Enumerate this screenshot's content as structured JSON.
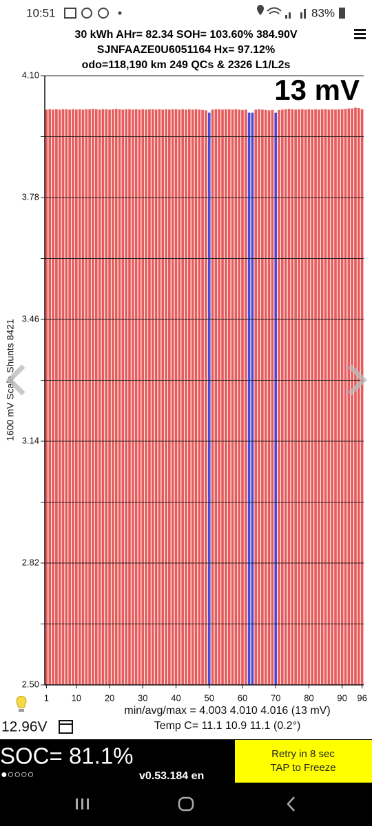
{
  "status_bar": {
    "time": "10:51",
    "battery": "83%"
  },
  "header": {
    "line1": "30 kWh  AHr= 82.34  SOH= 103.60%   384.90V",
    "line2": "SJNFAAZE0U6051164   Hx= 97.12%",
    "line3": "odo=118,190 km 249 QCs & 2326 L1/L2s"
  },
  "chart_data": {
    "type": "bar",
    "annotation": "13 mV",
    "y_label": "1600 mV Scale  Shunts 8421",
    "x": [
      1,
      2,
      3,
      4,
      5,
      6,
      7,
      8,
      9,
      10,
      11,
      12,
      13,
      14,
      15,
      16,
      17,
      18,
      19,
      20,
      21,
      22,
      23,
      24,
      25,
      26,
      27,
      28,
      29,
      30,
      31,
      32,
      33,
      34,
      35,
      36,
      37,
      38,
      39,
      40,
      41,
      42,
      43,
      44,
      45,
      46,
      47,
      48,
      49,
      50,
      51,
      52,
      53,
      54,
      55,
      56,
      57,
      58,
      59,
      60,
      61,
      62,
      63,
      64,
      65,
      66,
      67,
      68,
      69,
      70,
      71,
      72,
      73,
      74,
      75,
      76,
      77,
      78,
      79,
      80,
      81,
      82,
      83,
      84,
      85,
      86,
      87,
      88,
      89,
      90,
      91,
      92,
      93,
      94,
      95,
      96
    ],
    "values": [
      4.011,
      4.012,
      4.011,
      4.012,
      4.011,
      4.012,
      4.012,
      4.011,
      4.012,
      4.011,
      4.012,
      4.011,
      4.012,
      4.012,
      4.013,
      4.012,
      4.011,
      4.012,
      4.012,
      4.011,
      4.012,
      4.013,
      4.012,
      4.011,
      4.012,
      4.012,
      4.011,
      4.012,
      4.011,
      4.012,
      4.011,
      4.012,
      4.012,
      4.011,
      4.012,
      4.011,
      4.012,
      4.011,
      4.012,
      4.012,
      4.011,
      4.012,
      4.011,
      4.012,
      4.011,
      4.012,
      4.011,
      4.01,
      4.009,
      4.003,
      4.011,
      4.012,
      4.012,
      4.011,
      4.012,
      4.012,
      4.011,
      4.012,
      4.011,
      4.01,
      4.011,
      4.003,
      4.003,
      4.011,
      4.012,
      4.011,
      4.01,
      4.009,
      4.01,
      4.003,
      4.01,
      4.011,
      4.012,
      4.013,
      4.012,
      4.011,
      4.012,
      4.012,
      4.011,
      4.012,
      4.011,
      4.012,
      4.011,
      4.012,
      4.012,
      4.011,
      4.012,
      4.011,
      4.012,
      4.012,
      4.013,
      4.014,
      4.014,
      4.016,
      4.015,
      4.012
    ],
    "colors": [
      "#e65c5c",
      "#e65c5c",
      "#e65c5c",
      "#e65c5c",
      "#e65c5c",
      "#e65c5c",
      "#e65c5c",
      "#e65c5c",
      "#e65c5c",
      "#e65c5c",
      "#e65c5c",
      "#e65c5c",
      "#e65c5c",
      "#e65c5c",
      "#e65c5c",
      "#e65c5c",
      "#e65c5c",
      "#e65c5c",
      "#e65c5c",
      "#e65c5c",
      "#e65c5c",
      "#e65c5c",
      "#e65c5c",
      "#e65c5c",
      "#e65c5c",
      "#e65c5c",
      "#e65c5c",
      "#e65c5c",
      "#e65c5c",
      "#e65c5c",
      "#e65c5c",
      "#e65c5c",
      "#e65c5c",
      "#e65c5c",
      "#e65c5c",
      "#e65c5c",
      "#e65c5c",
      "#e65c5c",
      "#e65c5c",
      "#e65c5c",
      "#e65c5c",
      "#e65c5c",
      "#e65c5c",
      "#e65c5c",
      "#e65c5c",
      "#e65c5c",
      "#e65c5c",
      "#e65c5c",
      "#e65c5c",
      "#4b4bd8",
      "#e65c5c",
      "#e65c5c",
      "#e65c5c",
      "#e65c5c",
      "#e65c5c",
      "#e65c5c",
      "#e65c5c",
      "#e65c5c",
      "#e65c5c",
      "#e65c5c",
      "#e65c5c",
      "#4b4bd8",
      "#4b4bd8",
      "#e65c5c",
      "#e65c5c",
      "#e65c5c",
      "#e65c5c",
      "#e65c5c",
      "#e65c5c",
      "#4b4bd8",
      "#e65c5c",
      "#e65c5c",
      "#e65c5c",
      "#e65c5c",
      "#e65c5c",
      "#e65c5c",
      "#e65c5c",
      "#e65c5c",
      "#e65c5c",
      "#e65c5c",
      "#e65c5c",
      "#e65c5c",
      "#e65c5c",
      "#e65c5c",
      "#e65c5c",
      "#e65c5c",
      "#e65c5c",
      "#e65c5c",
      "#e65c5c",
      "#e65c5c",
      "#e65c5c",
      "#e65c5c",
      "#e65c5c",
      "#e65c5c",
      "#e65c5c",
      "#e65c5c"
    ],
    "xlim": [
      0.5,
      96.5
    ],
    "xticks": [
      1,
      10,
      20,
      30,
      40,
      50,
      60,
      70,
      80,
      90,
      96
    ],
    "ylim": [
      2.5,
      4.1
    ],
    "yticks": [
      {
        "value": 2.5,
        "label": "2.50"
      },
      2.82,
      3.14,
      3.46,
      3.78,
      {
        "value": 4.1,
        "label": "4.10"
      }
    ],
    "minor_yticks": [
      2.66,
      2.98,
      3.3,
      3.62,
      3.94
    ],
    "grid": true
  },
  "stats": {
    "minmax": "min/avg/max = 4.003 4.010 4.016  (13 mV)",
    "temp": "Temp C= 11.1  10.9  11.1  (0.2°)",
    "voltage": "12.96V"
  },
  "footer": {
    "soc": "SOC= 81.1%",
    "dots": "●○○○○",
    "version": "v0.53.184 en",
    "retry": "Retry in 8 sec",
    "freeze": "TAP to Freeze"
  }
}
